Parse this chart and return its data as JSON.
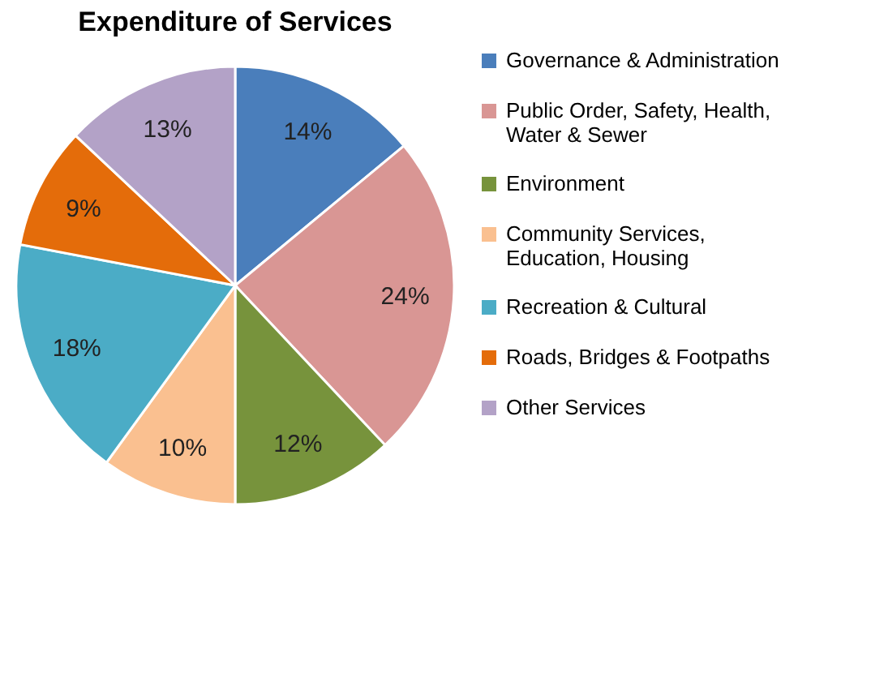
{
  "chart_data": {
    "type": "pie",
    "title": "Expenditure of Services",
    "categories": [
      "Governance & Administration",
      "Public Order, Safety, Health, Water & Sewer",
      "Environment",
      "Community Services, Education, Housing",
      "Recreation & Cultural",
      "Roads, Bridges & Footpaths",
      "Other Services"
    ],
    "values": [
      14,
      24,
      12,
      10,
      18,
      9,
      13
    ],
    "value_labels": [
      "14%",
      "24%",
      "12%",
      "10%",
      "18%",
      "9%",
      "13%"
    ],
    "colors": [
      "#4a7ebb",
      "#d99694",
      "#77933c",
      "#fac090",
      "#4bacc6",
      "#e46c0a",
      "#b3a2c7"
    ],
    "legend": "right"
  }
}
